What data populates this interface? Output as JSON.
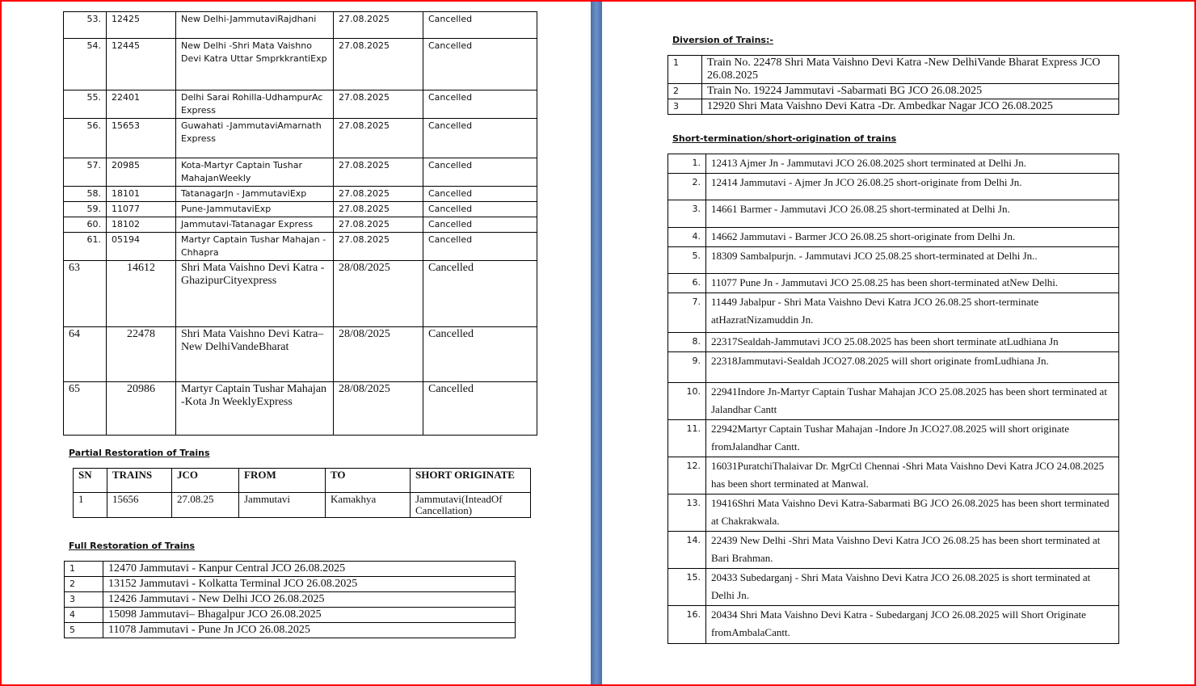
{
  "cancelled": [
    {
      "sn": "53.",
      "train": "12425",
      "name": "New Delhi-JammutaviRajdhani",
      "date": "27.08.2025",
      "status": "Cancelled"
    },
    {
      "sn": "54.",
      "train": "12445",
      "name": "New Delhi -Shri Mata  Vaishno Devi Katra Uttar  SmprkkrantiExp",
      "date": "27.08.2025",
      "status": "Cancelled"
    },
    {
      "sn": "55.",
      "train": "22401",
      "name": "Delhi Sarai Rohilla-UdhampurAc Express",
      "date": "27.08.2025",
      "status": "Cancelled"
    },
    {
      "sn": "56.",
      "train": "15653",
      "name": "Guwahati  -JammutaviAmarnath Express",
      "date": "27.08.2025",
      "status": "Cancelled"
    },
    {
      "sn": "57.",
      "train": "20985",
      "name": "Kota-Martyr Captain Tushar MahajanWeekly",
      "date": "27.08.2025",
      "status": "Cancelled"
    },
    {
      "sn": "58.",
      "train": "18101",
      "name": "TatanagarJn  - JammutaviExp",
      "date": "27.08.2025",
      "status": "Cancelled"
    },
    {
      "sn": "59.",
      "train": "11077",
      "name": "Pune-JammutaviExp",
      "date": "27.08.2025",
      "status": "Cancelled"
    },
    {
      "sn": "60.",
      "train": "18102",
      "name": "Jammutavi-Tatanagar  Express",
      "date": "27.08.2025",
      "status": "Cancelled"
    },
    {
      "sn": "61.",
      "train": "05194",
      "name": "Martyr Captain  Tushar Mahajan - Chhapra",
      "date": "27.08.2025",
      "status": "Cancelled"
    },
    {
      "sn": "63",
      "train": "14612",
      "name": "Shri Mata Vaishno Devi Katra -GhazipurCityexpress",
      "date": "28/08/2025",
      "status": "Cancelled"
    },
    {
      "sn": "64",
      "train": "22478",
      "name": "Shri Mata Vaishno Devi Katra–New DelhiVandeBharat",
      "date": "28/08/2025",
      "status": "Cancelled"
    },
    {
      "sn": "65",
      "train": "20986",
      "name": "Martyr Captain  Tushar Mahajan -Kota Jn WeeklyExpress",
      "date": "28/08/2025",
      "status": "Cancelled"
    }
  ],
  "partial": {
    "title": "Partial Restoration of Trains",
    "headers": [
      "SN",
      "TRAINS",
      "JCO",
      "FROM",
      "TO",
      "SHORT ORIGINATE"
    ],
    "rows": [
      [
        "1",
        "15656",
        "27.08.25",
        "Jammutavi",
        "Kamakhya",
        "Jammutavi(InteadOf Cancellation)"
      ]
    ]
  },
  "full": {
    "title": "Full Restoration of Trains",
    "rows": [
      [
        "1",
        "12470 Jammutavi  - Kanpur  Central  JCO 26.08.2025"
      ],
      [
        "2",
        "13152 Jammutavi  - Kolkatta  Terminal  JCO 26.08.2025"
      ],
      [
        "3",
        "12426 Jammutavi  - New Delhi JCO 26.08.2025"
      ],
      [
        "4",
        "15098 Jammutavi– Bhagalpur  JCO 26.08.2025"
      ],
      [
        "5",
        "11078 Jammutavi  - Pune Jn JCO 26.08.2025"
      ]
    ]
  },
  "diversion": {
    "title": "Diversion of Trains:-",
    "rows": [
      [
        "1",
        "Train No. 22478  Shri Mata  Vaishno  Devi  Katra  -New  DelhiVande  Bharat  Express  JCO 26.08.2025"
      ],
      [
        "2",
        "Train No. 19224  Jammutavi  -Sabarmati  BG JCO 26.08.2025"
      ],
      [
        "3",
        "12920  Shri Mata Vaishno  Devi  Katra  -Dr. Ambedkar Nagar JCO 26.08.2025"
      ]
    ]
  },
  "short": {
    "title": "Short-termination/short-origination of trains",
    "rows": [
      [
        "1.",
        "12413 Ajmer  Jn - Jammutavi  JCO 26.08.2025 short terminated at Delhi  Jn."
      ],
      [
        "2.",
        "12414 Jammutavi  - Ajmer  Jn JCO 26.08.25 short-originate  from Delhi  Jn."
      ],
      [
        "3.",
        "14661 Barmer  - Jammutavi  JCO 26.08.25 short-terminated  at Delhi  Jn."
      ],
      [
        "4.",
        "14662 Jammutavi  - Barmer  JCO 26.08.25 short-originate  from Delhi  Jn."
      ],
      [
        "5.",
        "18309 Sambalpurjn.  - Jammutavi  JCO 25.08.25 short-terminated  at Delhi  Jn.."
      ],
      [
        "6.",
        "11077 Pune  Jn - Jammutavi  JCO 25.08.25 has been short-terminated  atNew Delhi."
      ],
      [
        "7.",
        "11449 Jabalpur  - Shri Mata  Vaishno  Devi  Katra  JCO 26.08.25  short-terminate atHazratNizamuddin  Jn."
      ],
      [
        "8.",
        "22317Sealdah-Jammutavi JCO 25.08.2025 has been short terminate atLudhiana Jn"
      ],
      [
        "9.",
        "22318Jammutavi-Sealdah JCO27.08.2025 will short originate  fromLudhiana Jn."
      ],
      [
        "10.",
        "22941Indore Jn-Martyr Captain Tushar Mahajan JCO 25.08.2025 has been short terminated at Jalandhar Cantt"
      ],
      [
        "11.",
        "22942Martyr Captain Tushar Mahajan -Indore Jn JCO27.08.2025 will short originate fromJalandhar Cantt."
      ],
      [
        "12.",
        "16031PuratchiThalaivar Dr. MgrCtl  Chennai -Shri Mata Vaishno Devi Katra JCO 24.08.2025 has been short terminated at Manwal."
      ],
      [
        "13.",
        "19416Shri Mata Vaishno Devi Katra-Sabarmati BG JCO 26.08.2025 has been short terminated at Chakrakwala."
      ],
      [
        "14.",
        "22439 New Delhi  -Shri Mata Vaishno Devi Katra JCO 26.08.25 has been short terminated at Bari Brahman."
      ],
      [
        "15.",
        "20433 Subedarganj - Shri Mata Vaishno Devi Katra JCO 26.08.2025 is short terminated at Delhi Jn."
      ],
      [
        "16.",
        "20434 Shri Mata Vaishno Devi Katra - Subedarganj JCO 26.08.2025 will Short Originate fromAmbalaCantt."
      ]
    ]
  },
  "colors": {
    "frame": "#ff0000",
    "page_separator": "#5b80b8"
  }
}
